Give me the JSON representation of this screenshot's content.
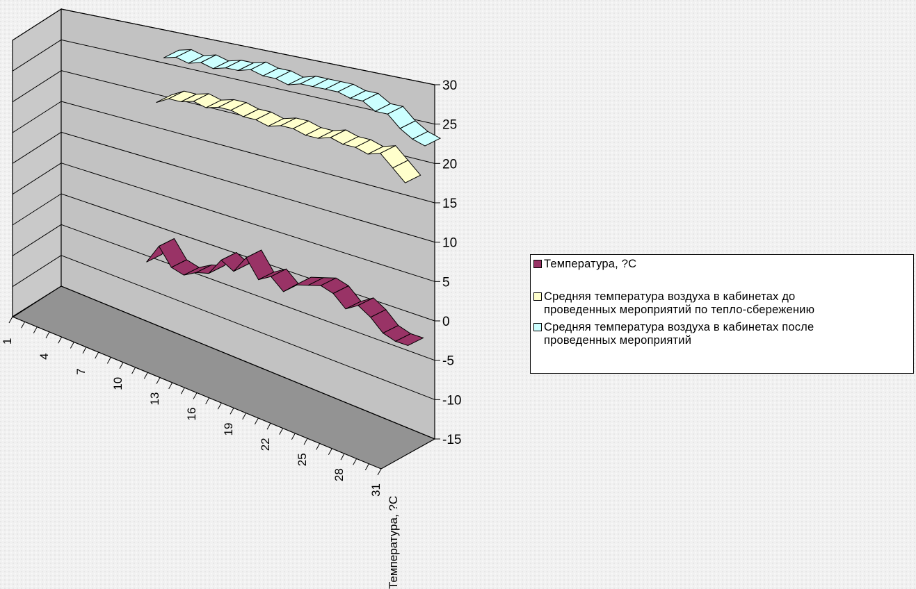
{
  "chart_data": {
    "type": "line",
    "style": "3d-ribbon",
    "title": "",
    "xlabel": "Температура, ?С",
    "ylabel": "",
    "ylim": [
      -15,
      30
    ],
    "ytick_step": 5,
    "yticks": [
      30,
      25,
      20,
      15,
      10,
      5,
      0,
      -5,
      -10,
      -15
    ],
    "x_range": [
      1,
      31
    ],
    "xtick_labels": [
      "1",
      "4",
      "7",
      "10",
      "13",
      "16",
      "19",
      "22",
      "25",
      "28",
      "31"
    ],
    "grid": true,
    "legend_position": "right",
    "series": [
      {
        "name": "Температура, ?С",
        "color": "#993366",
        "x": [
          10,
          11,
          12,
          13,
          14,
          15,
          16,
          17,
          18,
          19,
          20,
          21,
          22,
          23,
          24,
          25,
          26,
          27,
          28,
          29,
          30,
          31
        ],
        "values": [
          -2,
          1,
          -1.5,
          -2,
          -1,
          -0.5,
          2,
          1,
          3.5,
          1,
          2,
          0.5,
          2,
          2.5,
          3,
          2.5,
          1,
          2,
          1,
          -0.5,
          -1,
          -1
        ]
      },
      {
        "name": "Средняя температура воздуха в кабинетах до\nпроведенных мероприятий по тепло-сбережению",
        "color": "#ffffcc",
        "x": [
          10,
          11,
          12,
          13,
          14,
          15,
          16,
          17,
          18,
          19,
          20,
          21,
          22,
          23,
          24,
          25,
          26,
          27,
          28,
          29,
          30
        ],
        "values": [
          21,
          22,
          22,
          22.5,
          22,
          22.5,
          22.5,
          22,
          22,
          21.5,
          22,
          22,
          21.5,
          21.5,
          22,
          21.5,
          21.5,
          21,
          21.5,
          20,
          18.5
        ]
      },
      {
        "name": "Средняя температура воздуха в кабинетах после\nпроведенных мероприятий",
        "color": "#ccffff",
        "x": [
          10,
          11,
          12,
          13,
          14,
          15,
          16,
          17,
          18,
          19,
          20,
          21,
          22,
          23,
          24,
          25,
          26,
          27,
          28,
          29,
          30,
          31
        ],
        "values": [
          27,
          27.5,
          27,
          27.5,
          27,
          27.5,
          27.5,
          28,
          27.5,
          27.5,
          27,
          27.5,
          27.5,
          27.5,
          27.5,
          27,
          27,
          26,
          26,
          24.5,
          23.5,
          23
        ]
      }
    ]
  },
  "colors": {
    "back_wall": "#c2c2c2",
    "side_wall": "#c9c9c9",
    "floor": "#939393",
    "gridline": "#000000"
  }
}
